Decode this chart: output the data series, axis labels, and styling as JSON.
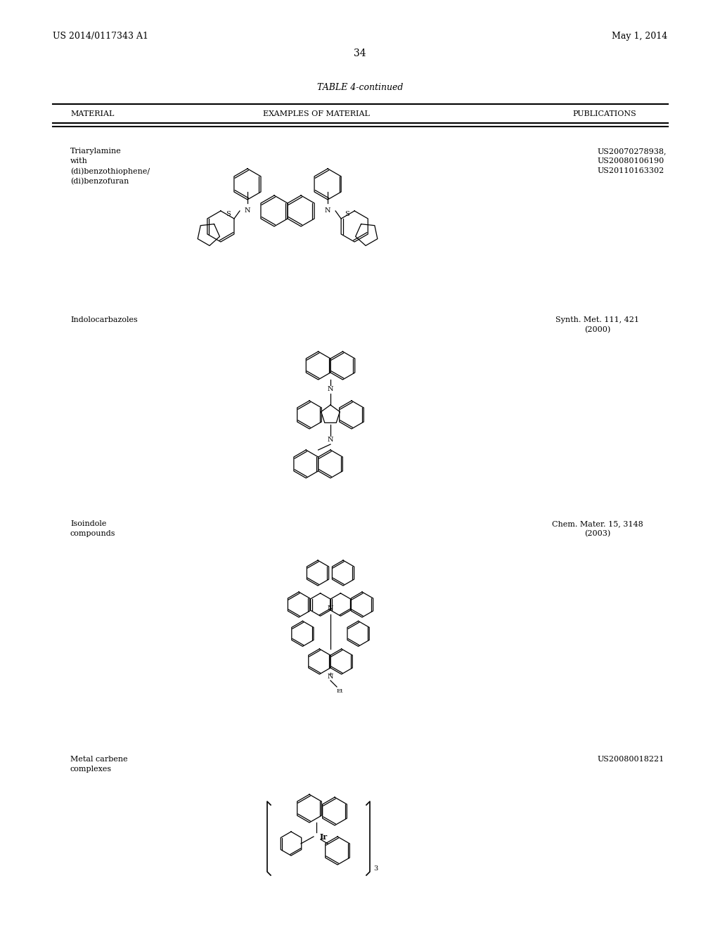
{
  "background_color": "#ffffff",
  "header_left": "US 2014/0117343 A1",
  "header_right": "May 1, 2014",
  "page_number": "34",
  "table_title": "TABLE 4-continued",
  "col1_header": "MATERIAL",
  "col2_header": "EXAMPLES OF MATERIAL",
  "col3_header": "PUBLICATIONS",
  "row1_material": "Triarylamine\nwith\n(di)benzothiophene/\n(di)benzofuran",
  "row1_pub": "US20070278938,\nUS20080106190\nUS20110163302",
  "row2_material": "Indolocarbazoles",
  "row2_pub": "Synth. Met. 111, 421\n(2000)",
  "row3_material": "Isoindole\ncompounds",
  "row3_pub": "Chem. Mater. 15, 3148\n(2003)",
  "row4_material": "Metal carbene\ncomplexes",
  "row4_pub": "US20080018221",
  "header_fontsize": 9,
  "body_fontsize": 8,
  "title_fontsize": 9,
  "line_color": "#000000",
  "text_color": "#000000"
}
